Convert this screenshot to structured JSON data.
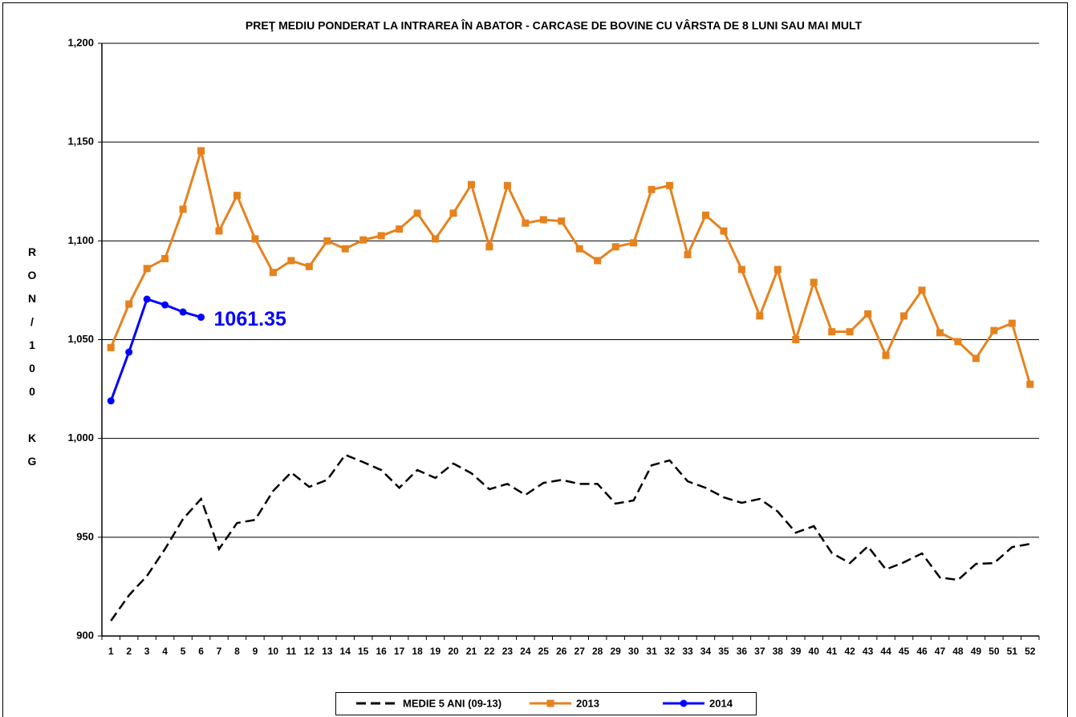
{
  "chart_data": {
    "type": "line",
    "title": "PREŢ MEDIU PONDERAT LA INTRAREA ÎN ABATOR - CARCASE  DE BOVINE CU VÂRSTA DE  8 LUNI SAU MAI MULT",
    "y_label": "RON/100 KG",
    "annotation": "1061.35",
    "categories": [
      "1",
      "2",
      "3",
      "4",
      "5",
      "6",
      "7",
      "8",
      "9",
      "10",
      "11",
      "12",
      "13",
      "14",
      "15",
      "16",
      "17",
      "18",
      "19",
      "20",
      "21",
      "22",
      "23",
      "24",
      "25",
      "26",
      "27",
      "28",
      "29",
      "30",
      "31",
      "32",
      "33",
      "34",
      "35",
      "36",
      "37",
      "38",
      "39",
      "40",
      "41",
      "42",
      "43",
      "44",
      "45",
      "46",
      "47",
      "48",
      "49",
      "50",
      "51",
      "52"
    ],
    "ylim": [
      900,
      1200
    ],
    "yticks": [
      900,
      950,
      {
        "value": 1000,
        "label": "1,000"
      },
      {
        "value": 1050,
        "label": "1,050"
      },
      {
        "value": 1100,
        "label": "1,100"
      },
      {
        "value": 1150,
        "label": "1,150"
      },
      {
        "value": 1200,
        "label": "1,200"
      }
    ],
    "grid": true,
    "legend": "bottom",
    "series": [
      {
        "name": "MEDIE 5 ANI (09-13)",
        "color": "#000000",
        "dash": "dashed",
        "marker": null,
        "values": [
          907.7,
          920.6,
          930.4,
          944,
          959.2,
          969.4,
          944,
          957.2,
          958.8,
          973.4,
          982.8,
          975.5,
          979,
          991.7,
          988,
          984,
          975,
          984,
          980,
          987.3,
          982.4,
          974.3,
          977,
          971.4,
          977.5,
          979,
          977,
          977,
          967,
          968.6,
          986.4,
          988.9,
          978.3,
          975,
          970.2,
          967.4,
          969.4,
          963,
          952.3,
          955.6,
          942,
          936.9,
          945.4,
          933.7,
          937.3,
          941.8,
          929.6,
          928.4,
          936.5,
          936.9,
          945,
          946.6
        ]
      },
      {
        "name": "2013",
        "color": "#e6821e",
        "dash": "solid",
        "marker": "square",
        "values": [
          1046,
          1068,
          1086,
          1091,
          1116,
          1145.6,
          1105,
          1123,
          1101,
          1084,
          1090,
          1087,
          1100,
          1096,
          1100.5,
          1102.6,
          1106,
          1114,
          1101,
          1114,
          1128.5,
          1097,
          1128,
          1109,
          1110.7,
          1110,
          1096,
          1090,
          1097,
          1099,
          1126,
          1128,
          1093,
          1113,
          1105,
          1085.5,
          1062,
          1085.5,
          1050,
          1079,
          1054,
          1054,
          1063,
          1042,
          1062,
          1075,
          1053.5,
          1049,
          1040.5,
          1054.6,
          1058.3,
          1027.4
        ]
      },
      {
        "name": "2014",
        "color": "#0000ff",
        "dash": "solid",
        "marker": "circle",
        "values": [
          1019,
          1043.7,
          1070.5,
          1067.6,
          1064,
          1061.35,
          null,
          null,
          null,
          null,
          null,
          null,
          null,
          null,
          null,
          null,
          null,
          null,
          null,
          null,
          null,
          null,
          null,
          null,
          null,
          null,
          null,
          null,
          null,
          null,
          null,
          null,
          null,
          null,
          null,
          null,
          null,
          null,
          null,
          null,
          null,
          null,
          null,
          null,
          null,
          null,
          null,
          null,
          null,
          null,
          null,
          null
        ]
      }
    ]
  }
}
